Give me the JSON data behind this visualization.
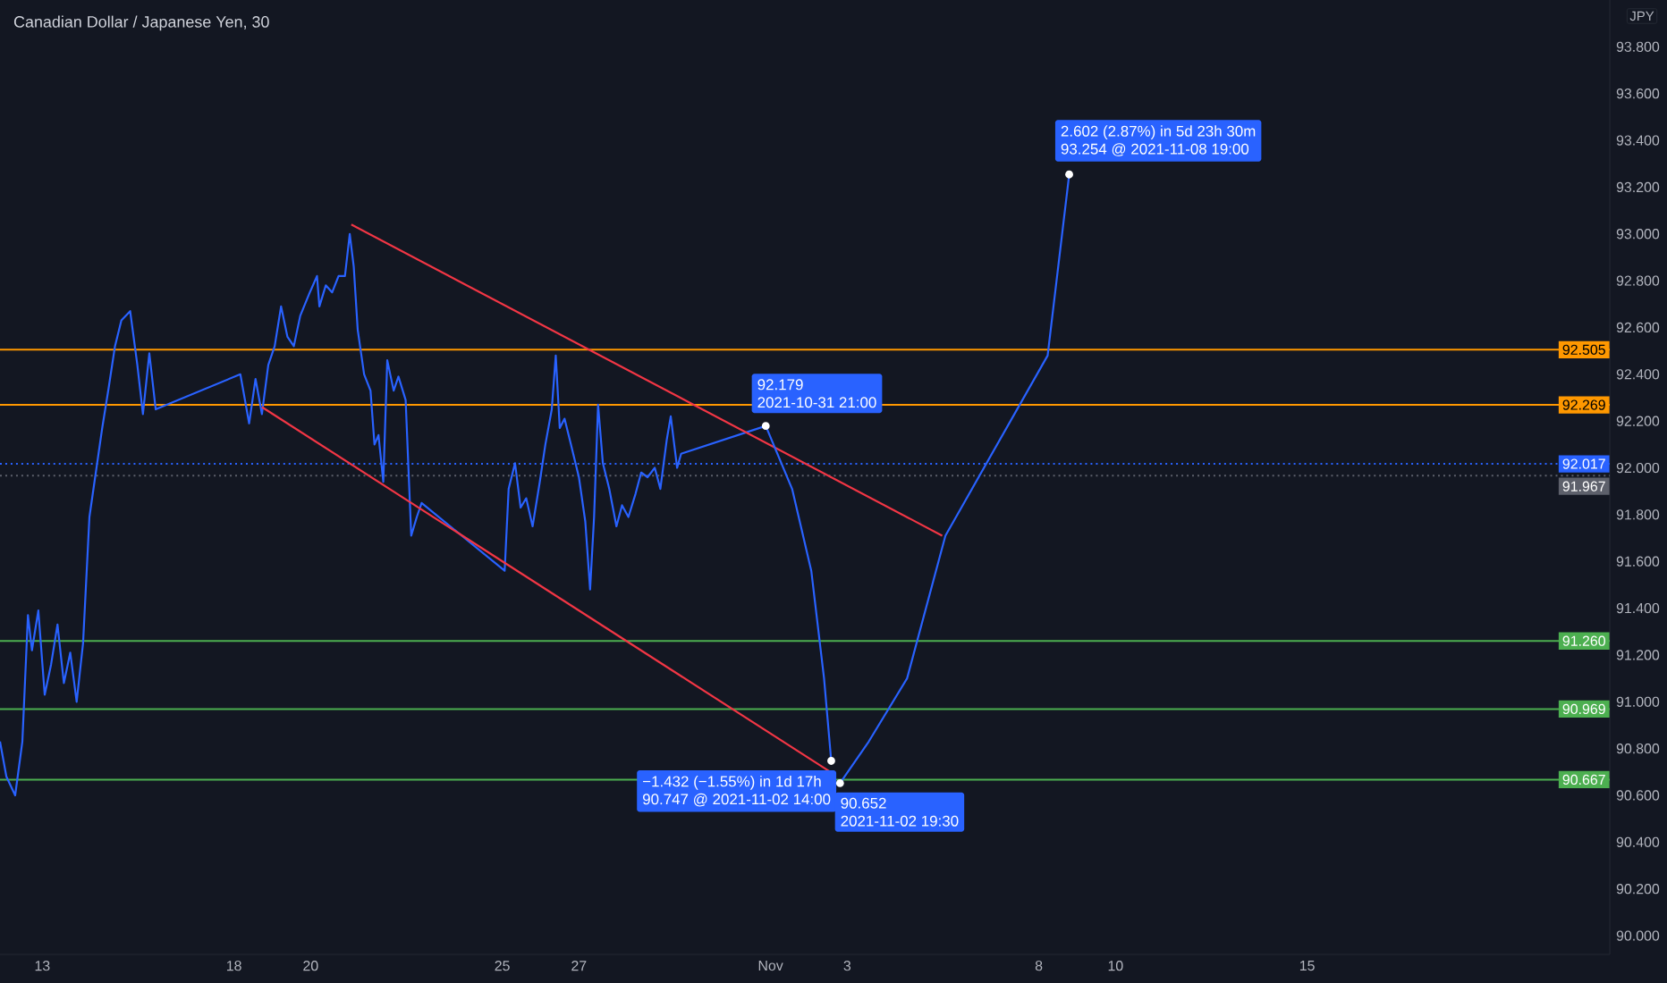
{
  "chart_data": {
    "type": "line",
    "title": "Canadian Dollar / Japanese Yen, 30",
    "ylabel": "JPY",
    "x": [
      "2021-10-11T21:30",
      "2021-10-12T01:30",
      "2021-10-12T07:00",
      "2021-10-12T11:30",
      "2021-10-12T15:00",
      "2021-10-12T17:30",
      "2021-10-12T21:30",
      "2021-10-13T01:30",
      "2021-10-13T05:30",
      "2021-10-13T09:30",
      "2021-10-13T13:30",
      "2021-10-13T17:30",
      "2021-10-13T21:30",
      "2021-10-14T01:30",
      "2021-10-14T05:30",
      "2021-10-14T13:30",
      "2021-10-14T17:30",
      "2021-10-14T21:30",
      "2021-10-15T01:30",
      "2021-10-15T07:00",
      "2021-10-15T11:30",
      "2021-10-15T15:00",
      "2021-10-15T19:00",
      "2021-10-15T23:00",
      "2021-10-18T04:00",
      "2021-10-18T09:30",
      "2021-10-18T13:30",
      "2021-10-18T17:30",
      "2021-10-18T21:30",
      "2021-10-19T01:30",
      "2021-10-19T05:30",
      "2021-10-19T09:30",
      "2021-10-19T13:30",
      "2021-10-19T17:30",
      "2021-10-19T23:30",
      "2021-10-20T04:00",
      "2021-10-20T05:30",
      "2021-10-20T09:30",
      "2021-10-20T13:30",
      "2021-10-20T17:30",
      "2021-10-20T21:30",
      "2021-10-21T00:30",
      "2021-10-21T03:00",
      "2021-10-21T05:30",
      "2021-10-21T09:30",
      "2021-10-21T13:30",
      "2021-10-21T16:00",
      "2021-10-21T18:30",
      "2021-10-21T21:30",
      "2021-10-22T00:00",
      "2021-10-22T04:00",
      "2021-10-22T07:00",
      "2021-10-22T11:30",
      "2021-10-22T15:00",
      "2021-10-22T18:30",
      "2021-10-22T21:30",
      "2021-10-25T01:30",
      "2021-10-25T04:00",
      "2021-10-25T08:00",
      "2021-10-25T11:30",
      "2021-10-25T15:00",
      "2021-10-25T19:00",
      "2021-10-25T23:30",
      "2021-10-26T03:00",
      "2021-10-26T07:00",
      "2021-10-26T09:30",
      "2021-10-26T12:00",
      "2021-10-26T15:00",
      "2021-10-26T19:00",
      "2021-10-27T00:00",
      "2021-10-27T04:00",
      "2021-10-27T07:00",
      "2021-10-27T09:30",
      "2021-10-27T12:00",
      "2021-10-27T15:00",
      "2021-10-27T19:00",
      "2021-10-27T23:30",
      "2021-10-28T03:00",
      "2021-10-28T07:00",
      "2021-10-28T11:30",
      "2021-10-28T15:00",
      "2021-10-28T19:00",
      "2021-10-28T23:30",
      "2021-10-29T03:00",
      "2021-10-29T07:00",
      "2021-10-29T09:30",
      "2021-10-29T13:30",
      "2021-10-29T16:00",
      "2021-10-31T21:00"
    ],
    "series": [
      {
        "color": "#2962ff",
        "values": [
          90.83,
          90.68,
          90.6,
          90.83,
          91.37,
          91.22,
          91.39,
          91.03,
          91.16,
          91.33,
          91.08,
          91.21,
          91.0,
          91.25,
          91.79,
          92.17,
          92.34,
          92.52,
          92.63,
          92.67,
          92.44,
          92.23,
          92.49,
          92.25,
          92.4,
          92.19,
          92.38,
          92.23,
          92.44,
          92.52,
          92.69,
          92.56,
          92.52,
          92.65,
          92.75,
          92.82,
          92.69,
          92.78,
          92.75,
          92.82,
          92.82,
          93.0,
          92.86,
          92.59,
          92.4,
          92.33,
          92.1,
          92.14,
          91.94,
          92.46,
          92.33,
          92.39,
          92.29,
          91.71,
          91.79,
          91.85,
          91.56,
          91.91,
          92.02,
          91.83,
          91.87,
          91.75,
          91.94,
          92.1,
          92.25,
          92.48,
          92.17,
          92.21,
          92.1,
          91.96,
          91.77,
          91.48,
          91.79,
          92.27,
          92.02,
          91.91,
          91.75,
          91.84,
          91.79,
          91.89,
          91.98,
          91.96,
          92.0,
          91.91,
          92.12,
          92.22,
          92.0,
          92.06,
          92.179
        ]
      },
      {
        "color": "#f23645",
        "x": [
          "2021-10-21T01:30",
          "2021-11-05T11:30"
        ],
        "values": [
          93.04,
          91.71
        ]
      },
      {
        "color": "#f23645",
        "x": [
          "2021-10-18T17:30",
          "2021-11-02T13:30"
        ],
        "values": [
          92.26,
          90.7
        ]
      },
      {
        "color": "#2962ff",
        "x": [
          "2021-10-31T21:00",
          "2021-11-01T13:30",
          "2021-11-02T01:30",
          "2021-11-02T09:30",
          "2021-11-02T14:00"
        ],
        "values": [
          92.179,
          91.91,
          91.56,
          91.1,
          90.747
        ]
      },
      {
        "color": "#2962ff",
        "x": [
          "2021-11-02T19:30",
          "2021-11-03T13:30",
          "2021-11-04T13:30",
          "2021-11-05T13:30",
          "2021-11-08T05:30",
          "2021-11-08T19:00"
        ],
        "values": [
          90.652,
          90.83,
          91.1,
          91.71,
          92.48,
          93.254
        ]
      }
    ],
    "xlim": [
      "2021-10-11T21:30",
      "2021-11-22T21:30"
    ],
    "ylim": [
      89.92,
      94.0
    ],
    "xticks": [
      {
        "value": "2021-10-13",
        "label": "13"
      },
      {
        "value": "2021-10-18",
        "label": "18"
      },
      {
        "value": "2021-10-20",
        "label": "20"
      },
      {
        "value": "2021-10-25",
        "label": "25"
      },
      {
        "value": "2021-10-27",
        "label": "27"
      },
      {
        "value": "2021-11-01",
        "label": "Nov"
      },
      {
        "value": "2021-11-03",
        "label": "3"
      },
      {
        "value": "2021-11-08",
        "label": "8"
      },
      {
        "value": "2021-11-10",
        "label": "10"
      },
      {
        "value": "2021-11-15",
        "label": "15"
      }
    ],
    "yticks": [
      {
        "value": 90.0,
        "label": "90.000"
      },
      {
        "value": 90.2,
        "label": "90.200"
      },
      {
        "value": 90.4,
        "label": "90.400"
      },
      {
        "value": 90.6,
        "label": "90.600"
      },
      {
        "value": 90.8,
        "label": "90.800"
      },
      {
        "value": 91.0,
        "label": "91.000"
      },
      {
        "value": 91.2,
        "label": "91.200"
      },
      {
        "value": 91.4,
        "label": "91.400"
      },
      {
        "value": 91.6,
        "label": "91.600"
      },
      {
        "value": 91.8,
        "label": "91.800"
      },
      {
        "value": 92.0,
        "label": "92.000"
      },
      {
        "value": 92.2,
        "label": "92.200"
      },
      {
        "value": 92.4,
        "label": "92.400"
      },
      {
        "value": 92.6,
        "label": "92.600"
      },
      {
        "value": 92.8,
        "label": "92.800"
      },
      {
        "value": 93.0,
        "label": "93.000"
      },
      {
        "value": 93.2,
        "label": "93.200"
      },
      {
        "value": 93.4,
        "label": "93.400"
      },
      {
        "value": 93.6,
        "label": "93.600"
      },
      {
        "value": 93.8,
        "label": "93.800"
      }
    ],
    "ref_lines": [
      {
        "axis": "y",
        "value": 92.505,
        "label": "92.505",
        "color": "#ff9800",
        "line_style": "solid"
      },
      {
        "axis": "y",
        "value": 92.269,
        "label": "92.269",
        "color": "#ff9800",
        "line_style": "solid"
      },
      {
        "axis": "y",
        "value": 92.017,
        "label": "92.017",
        "color": "#2962ff",
        "line_style": "dotted"
      },
      {
        "axis": "y",
        "value": 91.967,
        "label": "91.967",
        "color": "#5d606b",
        "line_style": "dotted"
      },
      {
        "axis": "y",
        "value": 91.26,
        "label": "91.260",
        "color": "#4caf50",
        "line_style": "solid"
      },
      {
        "axis": "y",
        "value": 90.969,
        "label": "90.969",
        "color": "#4caf50",
        "line_style": "solid"
      },
      {
        "axis": "y",
        "value": 90.667,
        "label": "90.667",
        "color": "#4caf50",
        "line_style": "solid"
      }
    ],
    "annotations": [
      {
        "text": "92.179",
        "x": "2021-10-31T21:00",
        "y": 92.179
      },
      {
        "text": "2021-10-31 21:00",
        "x": "2021-10-31T21:00",
        "y": 92.179
      },
      {
        "text": "−1.432 (−1.55%) in 1d 17h",
        "x": "2021-11-02T14:00",
        "y": 90.747
      },
      {
        "text": "90.747 @ 2021-11-02  14:00",
        "x": "2021-11-02T14:00",
        "y": 90.747
      },
      {
        "text": "90.652",
        "x": "2021-11-02T19:30",
        "y": 90.652
      },
      {
        "text": "2021-11-02 19:30",
        "x": "2021-11-02T19:30",
        "y": 90.652
      },
      {
        "text": "2.602 (2.87%) in 5d 23h 30m",
        "x": "2021-11-08T19:00",
        "y": 93.254
      },
      {
        "text": "93.254 @ 2021-11-08  19:00",
        "x": "2021-11-08T19:00",
        "y": 93.254
      }
    ]
  }
}
